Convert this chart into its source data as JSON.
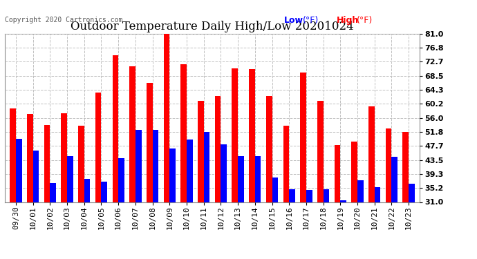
{
  "title": "Outdoor Temperature Daily High/Low 20201024",
  "copyright": "Copyright 2020 Cartronics.com",
  "legend_low": "Low",
  "legend_high": "High",
  "legend_unit": "(°F)",
  "ylim": [
    31.0,
    81.0
  ],
  "yticks": [
    31.0,
    35.2,
    39.3,
    43.5,
    47.7,
    51.8,
    56.0,
    60.2,
    64.3,
    68.5,
    72.7,
    76.8,
    81.0
  ],
  "dates": [
    "09/30",
    "10/01",
    "10/02",
    "10/03",
    "10/04",
    "10/05",
    "10/06",
    "10/07",
    "10/08",
    "10/09",
    "10/10",
    "10/11",
    "10/12",
    "10/13",
    "10/14",
    "10/15",
    "10/16",
    "10/17",
    "10/18",
    "10/19",
    "10/20",
    "10/21",
    "10/22",
    "10/23"
  ],
  "highs": [
    58.8,
    57.2,
    53.8,
    57.4,
    53.6,
    63.5,
    74.5,
    71.4,
    66.3,
    81.0,
    72.0,
    61.0,
    62.5,
    70.7,
    70.5,
    62.5,
    53.6,
    69.4,
    61.0,
    48.0,
    49.0,
    59.5,
    52.8,
    51.8
  ],
  "lows": [
    49.8,
    46.2,
    36.6,
    44.6,
    37.8,
    37.0,
    44.0,
    52.5,
    52.5,
    46.9,
    49.5,
    51.8,
    48.2,
    44.6,
    44.6,
    38.3,
    34.8,
    34.5,
    34.7,
    31.5,
    37.5,
    35.5,
    44.5,
    36.5
  ],
  "bar_color_high": "#ff0000",
  "bar_color_low": "#0000ff",
  "background_color": "#ffffff",
  "grid_color": "#c0c0c0",
  "title_fontsize": 12,
  "tick_fontsize": 8,
  "copyright_fontsize": 7,
  "legend_fontsize": 9,
  "bar_width": 0.35
}
